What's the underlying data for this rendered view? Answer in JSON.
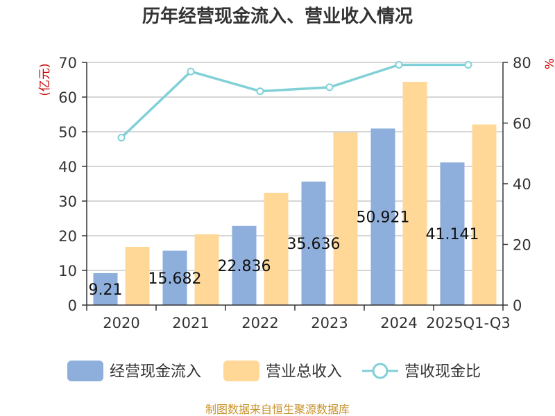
{
  "chart_data": {
    "type": "bar+line",
    "title": "历年经营现金流入、营业收入情况",
    "categories": [
      "2020",
      "2021",
      "2022",
      "2023",
      "2024",
      "2025Q1-Q3"
    ],
    "series": [
      {
        "name": "经营现金流入",
        "type": "bar",
        "axis": "left",
        "color": "#8eaedc",
        "values": [
          9.21,
          15.682,
          22.836,
          35.636,
          50.921,
          41.141
        ],
        "labels": [
          "9.21",
          "15.682",
          "22.836",
          "35.636",
          "50.921",
          "41.141"
        ]
      },
      {
        "name": "营业总收入",
        "type": "bar",
        "axis": "left",
        "color": "#ffd898",
        "values": [
          16.8,
          20.4,
          32.4,
          49.8,
          64.4,
          52.1
        ]
      },
      {
        "name": "营收现金比",
        "type": "line",
        "axis": "right",
        "color": "#80d0d8",
        "values": [
          55.2,
          77.0,
          70.5,
          71.8,
          79.2,
          79.2
        ]
      }
    ],
    "y_left": {
      "label": "(亿元)",
      "min": 0,
      "max": 70,
      "ticks": [
        "0",
        "10",
        "20",
        "30",
        "40",
        "50",
        "60",
        "70"
      ]
    },
    "y_right": {
      "label": "%",
      "min": 0,
      "max": 80,
      "ticks": [
        "0",
        "20",
        "40",
        "60",
        "80"
      ]
    },
    "grid": true,
    "legend_position": "bottom"
  },
  "colors": {
    "axis_label_red": "#cc0000",
    "source_gold": "#c8922a"
  },
  "source": "制图数据来自恒生聚源数据库"
}
